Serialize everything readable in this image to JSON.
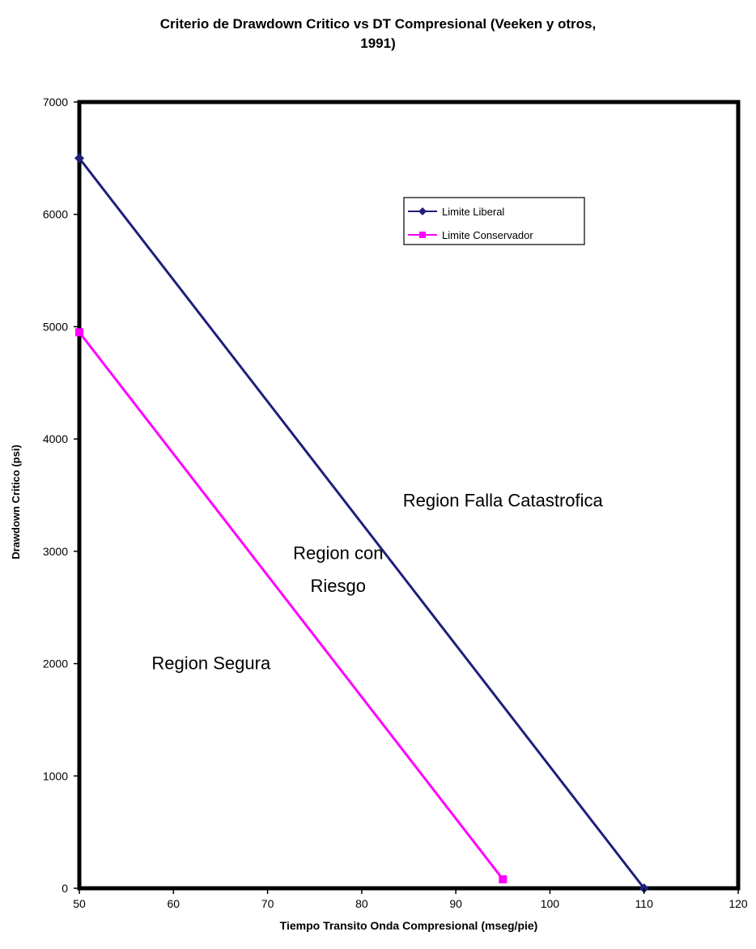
{
  "chart_data": {
    "type": "line",
    "title_lines": [
      "Criterio de Drawdown Critico vs DT Compresional (Veeken y otros,",
      "1991)"
    ],
    "xlabel": "Tiempo Transito Onda Compresional (mseg/pie)",
    "ylabel": "Drawdown Critico (psi)",
    "xlim": [
      50,
      120
    ],
    "ylim": [
      0,
      7000
    ],
    "xticks": [
      "50",
      "60",
      "70",
      "80",
      "90",
      "100",
      "110",
      "120"
    ],
    "yticks": [
      "0",
      "1000",
      "2000",
      "3000",
      "4000",
      "5000",
      "6000",
      "7000"
    ],
    "grid": false,
    "legend_placement": "upper-right inside plot",
    "series": [
      {
        "name": "Limite Liberal",
        "color": "#1f1f7a",
        "marker": "diamond",
        "x": [
          50,
          110
        ],
        "y": [
          6500,
          0
        ]
      },
      {
        "name": "Limite Conservador",
        "color": "#ff00ff",
        "marker": "square",
        "x": [
          50,
          95
        ],
        "y": [
          4950,
          80
        ]
      }
    ],
    "annotations": [
      {
        "text": "Region Falla Catastrofica",
        "x": 95,
        "y": 3400
      },
      {
        "text": "Region con",
        "x": 77.5,
        "y": 2930
      },
      {
        "text": "Riesgo",
        "x": 77.5,
        "y": 2640
      },
      {
        "text": "Region Segura",
        "x": 64,
        "y": 1950
      }
    ]
  }
}
